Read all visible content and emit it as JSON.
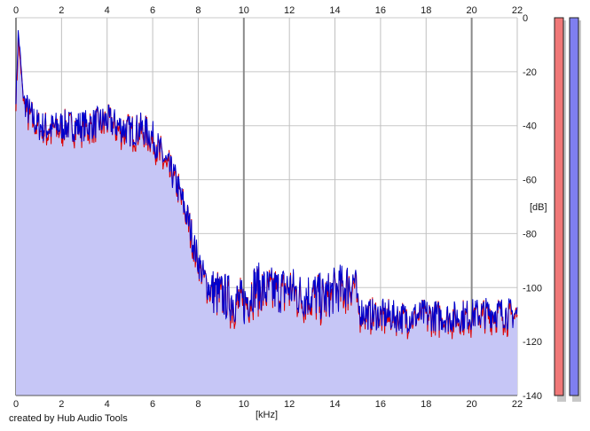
{
  "chart_data": {
    "type": "area",
    "title": "",
    "xlabel": "[kHz]",
    "ylabel": "[dB]",
    "xlim": [
      0,
      22
    ],
    "ylim": [
      -140,
      0
    ],
    "x_ticks": [
      0,
      2,
      4,
      6,
      8,
      10,
      12,
      14,
      16,
      18,
      20,
      22
    ],
    "y_ticks": [
      0,
      -20,
      -40,
      -60,
      -80,
      -100,
      -120,
      -140
    ],
    "y_tick_labels": [
      "0",
      "-20",
      "-40",
      "-60",
      "-80",
      "-100",
      "-120",
      "-140"
    ],
    "grid": true,
    "fill_color": "#c6c6f6",
    "series": [
      {
        "color": "#0000cc",
        "x": [
          0,
          0.1,
          0.2,
          0.3,
          0.5,
          0.8,
          1.0,
          1.5,
          2.0,
          2.5,
          3.0,
          3.5,
          4.0,
          4.5,
          5.0,
          5.5,
          6.0,
          6.3,
          6.6,
          7.0,
          7.3,
          7.6,
          7.8,
          8.0,
          8.2,
          8.4,
          8.6,
          9.0,
          9.5,
          10.0,
          10.5,
          11.0,
          11.5,
          12.0,
          12.5,
          13.0,
          13.5,
          14.0,
          14.5,
          14.9,
          15.0,
          15.5,
          16.0,
          17.0,
          18.0,
          19.0,
          20.0,
          21.0,
          22.0
        ],
        "y": [
          -30,
          -5,
          -15,
          -28,
          -34,
          -38,
          -40,
          -41,
          -40,
          -40,
          -40,
          -39,
          -38,
          -40,
          -42,
          -41,
          -44,
          -49,
          -54,
          -60,
          -68,
          -76,
          -84,
          -90,
          -95,
          -99,
          -101,
          -103,
          -104,
          -106,
          -99,
          -101,
          -101,
          -100,
          -103,
          -102,
          -104,
          -101,
          -99,
          -97,
          -108,
          -110,
          -110,
          -111,
          -110,
          -111,
          -110,
          -109,
          -110
        ]
      },
      {
        "color": "#dd0000",
        "x": [
          0,
          0.1,
          0.2,
          0.3,
          0.5,
          0.8,
          1.0,
          1.5,
          2.0,
          2.5,
          3.0,
          3.5,
          4.0,
          4.5,
          5.0,
          5.5,
          6.0,
          6.3,
          6.6,
          7.0,
          7.3,
          7.6,
          7.8,
          8.0,
          8.2,
          8.4,
          8.6,
          9.0,
          9.5,
          10.0,
          10.5,
          11.0,
          11.5,
          12.0,
          12.5,
          13.0,
          13.5,
          14.0,
          14.5,
          14.9,
          15.0,
          15.5,
          16.0,
          17.0,
          18.0,
          19.0,
          20.0,
          21.0,
          22.0
        ],
        "y": [
          -32,
          -8,
          -16,
          -29,
          -35,
          -39,
          -41,
          -42,
          -41,
          -41,
          -41,
          -40,
          -39,
          -41,
          -43,
          -42,
          -45,
          -50,
          -55,
          -61,
          -69,
          -77,
          -85,
          -91,
          -96,
          -100,
          -102,
          -104,
          -105,
          -107,
          -100,
          -102,
          -102,
          -101,
          -104,
          -103,
          -105,
          -102,
          -100,
          -98,
          -109,
          -111,
          -111,
          -112,
          -111,
          -112,
          -111,
          -110,
          -111
        ]
      }
    ]
  },
  "meters": {
    "left_color": "#f07878",
    "right_color": "#7f7ff0",
    "left_level": 1.0,
    "right_level": 1.0
  },
  "credit": "created by Hub Audio Tools"
}
